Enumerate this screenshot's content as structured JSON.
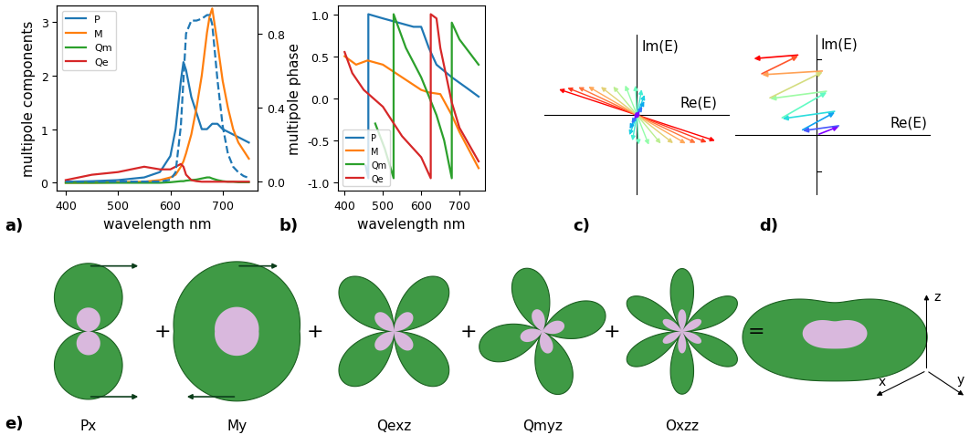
{
  "panel_labels": [
    "a)",
    "b)",
    "c)",
    "d)",
    "e)"
  ],
  "chart_data": [
    {
      "type": "line",
      "x_label": "wavelength nm",
      "y_label": "multipole components",
      "xlim": [
        383,
        767
      ],
      "xticks": [
        400,
        500,
        600,
        700
      ],
      "ylim": [
        -0.15,
        3.3
      ],
      "yticks": [
        0,
        1,
        2,
        3
      ],
      "y2lim": [
        -0.05,
        0.95
      ],
      "y2ticks": [
        0.0,
        0.4,
        0.8
      ],
      "legend": "upper left",
      "x": [
        400,
        450,
        500,
        550,
        580,
        600,
        610,
        620,
        625,
        630,
        640,
        650,
        660,
        670,
        675,
        680,
        690,
        700,
        710,
        720,
        730,
        740,
        750
      ],
      "series": [
        {
          "name": "P",
          "color": "#1f77b4",
          "values": [
            0.02,
            0.03,
            0.05,
            0.1,
            0.2,
            0.5,
            1.0,
            1.9,
            2.25,
            2.1,
            1.6,
            1.3,
            1.0,
            1.0,
            1.05,
            1.1,
            1.1,
            1.0,
            0.95,
            0.9,
            0.85,
            0.8,
            0.75
          ]
        },
        {
          "name": "M",
          "color": "#ff7f0e",
          "values": [
            0.0,
            0.0,
            0.01,
            0.02,
            0.05,
            0.1,
            0.15,
            0.3,
            0.4,
            0.55,
            0.9,
            1.4,
            2.0,
            2.8,
            3.1,
            3.25,
            2.6,
            1.9,
            1.4,
            1.0,
            0.75,
            0.6,
            0.45
          ]
        },
        {
          "name": "Qm",
          "color": "#2ca02c",
          "values": [
            0.0,
            0.0,
            0.0,
            0.0,
            0.0,
            0.01,
            0.02,
            0.03,
            0.03,
            0.04,
            0.05,
            0.06,
            0.08,
            0.1,
            0.1,
            0.08,
            0.05,
            0.03,
            0.02,
            0.02,
            0.01,
            0.01,
            0.01
          ]
        },
        {
          "name": "Qe",
          "color": "#d62728",
          "values": [
            0.05,
            0.15,
            0.2,
            0.3,
            0.25,
            0.25,
            0.3,
            0.35,
            0.3,
            0.15,
            0.05,
            0.03,
            0.02,
            0.02,
            0.02,
            0.02,
            0.02,
            0.02,
            0.02,
            0.02,
            0.02,
            0.02,
            0.02
          ]
        },
        {
          "color": "#1f77b4",
          "line_style": "dashed",
          "axis": "y2",
          "values": [
            0.0,
            0.0,
            0.0,
            0.0,
            0.0,
            0.01,
            0.05,
            0.3,
            0.55,
            0.8,
            0.87,
            0.87,
            0.88,
            0.9,
            0.9,
            0.85,
            0.55,
            0.3,
            0.15,
            0.08,
            0.05,
            0.03,
            0.02
          ]
        }
      ]
    },
    {
      "type": "line",
      "x_label": "wavelength nm",
      "y_label": "multipole phase",
      "xlim": [
        383,
        767
      ],
      "xticks": [
        400,
        500,
        600,
        700
      ],
      "ylim": [
        -1.1,
        1.1
      ],
      "yticks": [
        -1.0,
        -0.5,
        0.0,
        0.5,
        1.0
      ],
      "legend": "lower left",
      "series": [
        {
          "name": "P",
          "color": "#1f77b4",
          "x": [
            455,
            462,
            462,
            500,
            540,
            580,
            600,
            620,
            640,
            680,
            720,
            750
          ],
          "values": [
            -0.8,
            -0.95,
            1.0,
            0.95,
            0.9,
            0.85,
            0.85,
            0.6,
            0.4,
            0.25,
            0.12,
            0.02
          ]
        },
        {
          "name": "M",
          "color": "#ff7f0e",
          "x": [
            400,
            430,
            460,
            500,
            550,
            600,
            620,
            650,
            680,
            700,
            750
          ],
          "values": [
            0.5,
            0.4,
            0.45,
            0.4,
            0.25,
            0.1,
            0.07,
            0.05,
            -0.2,
            -0.4,
            -0.83
          ]
        },
        {
          "name": "Qm",
          "color": "#2ca02c",
          "x": [
            480,
            505,
            528,
            528,
            560,
            600,
            640,
            660,
            680,
            680,
            700,
            750
          ],
          "values": [
            -0.3,
            -0.6,
            -0.95,
            1.0,
            0.6,
            0.25,
            -0.2,
            -0.5,
            -0.95,
            0.9,
            0.7,
            0.4
          ]
        },
        {
          "name": "Qe",
          "color": "#d62728",
          "x": [
            400,
            420,
            450,
            500,
            550,
            580,
            600,
            625,
            625,
            640,
            650,
            680,
            700,
            750
          ],
          "values": [
            0.55,
            0.3,
            0.1,
            -0.1,
            -0.45,
            -0.6,
            -0.7,
            -0.95,
            1.0,
            0.95,
            0.6,
            -0.05,
            -0.35,
            -0.75
          ]
        }
      ]
    }
  ],
  "diagram_c": {
    "x_axis_label": "Re(E)",
    "y_axis_label": "Im(E)",
    "arrows": [
      [
        0.95,
        -0.33
      ],
      [
        0.85,
        -0.35
      ],
      [
        0.72,
        -0.36
      ],
      [
        0.6,
        -0.37
      ],
      [
        0.45,
        -0.37
      ],
      [
        0.3,
        -0.38
      ],
      [
        0.15,
        -0.4
      ],
      [
        0.02,
        -0.4
      ],
      [
        -0.06,
        -0.35
      ],
      [
        -0.1,
        -0.28
      ],
      [
        -0.1,
        -0.2
      ],
      [
        -0.08,
        -0.13
      ],
      [
        -0.05,
        -0.08
      ],
      [
        -0.02,
        -0.04
      ]
    ]
  },
  "diagram_d": {
    "x_axis_label": "Re(E)",
    "y_axis_label": "Im(E)",
    "path": [
      [
        0,
        0
      ],
      [
        0.3,
        0.12
      ],
      [
        -0.2,
        0.05
      ],
      [
        0.25,
        0.3
      ],
      [
        -0.45,
        0.2
      ],
      [
        0.15,
        0.55
      ],
      [
        -0.6,
        0.45
      ],
      [
        0.1,
        0.8
      ],
      [
        -0.7,
        0.75
      ],
      [
        -0.2,
        1.0
      ],
      [
        -0.8,
        0.95
      ]
    ]
  },
  "panel_e": {
    "terms": [
      "Px",
      "My",
      "Qexz",
      "Qmyz",
      "Oxzz"
    ],
    "operators": [
      "+",
      "+",
      "+",
      "+",
      "="
    ],
    "axis_labels": [
      "x",
      "y",
      "z"
    ]
  }
}
